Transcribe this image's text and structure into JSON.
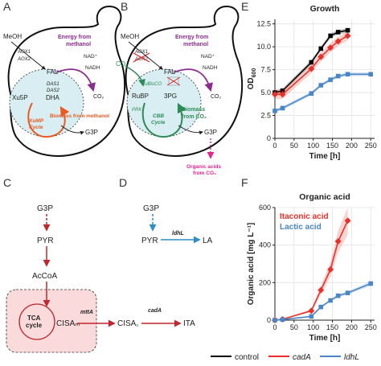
{
  "panels": {
    "A": "A",
    "B": "B",
    "C": "C",
    "D": "D",
    "E": "E",
    "F": "F"
  },
  "panel_a": {
    "meoh": "MeOH",
    "aox1": "AOX1",
    "aox2": "AOX2",
    "fal": "FAL",
    "das1": "DAS1",
    "das2": "DAS2",
    "dha": "DHA",
    "xu5p": "Xu5P",
    "cycle": "XuMP Cycle",
    "energy": "Energy from methanol",
    "nad": "NAD⁺",
    "nadh": "NADH",
    "co2": "CO₂",
    "biomass": "Biomass from methanol",
    "g3p": "G3P"
  },
  "panel_b": {
    "meoh": "MeOH",
    "aox1": "AOX1",
    "aox2": "AOX2",
    "fal": "FAL",
    "co2_in": "CO₂",
    "rubisco": "RuBisCO",
    "prk": "PRK",
    "rubp": "RuBP",
    "pg3": "3PG",
    "cycle": "CBB Cycle",
    "energy": "Energy from methanol",
    "nad": "NAD⁺",
    "nadh": "NADH",
    "co2_out": "CO₂",
    "biomass": "Biomass from CO₂",
    "g3p": "G3P",
    "organic": "Organic acids from CO₂"
  },
  "panel_c": {
    "g3p": "G3P",
    "pyr": "PYR",
    "acoa": "AcCoA",
    "tca": "TCA cycle",
    "cisam": "CISAₘ",
    "mtta": "mttA",
    "cisac": "CISA꜀",
    "cada": "cadA",
    "ita": "ITA"
  },
  "panel_d": {
    "g3p": "G3P",
    "pyr": "PYR",
    "ldhl": "ldhL",
    "la": "LA"
  },
  "colors": {
    "control": "#000000",
    "cadA": "#e8312a",
    "ldhL": "#4a86c5",
    "pathway_red": "#c0272d",
    "pathway_blue": "#2a8fc9",
    "energy_purple": "#8b2c8f",
    "xump_orange": "#ea5a22",
    "cbb_green": "#2e8b57",
    "magenta": "#e4258d"
  },
  "legend": [
    {
      "label": "control",
      "color": "#000000"
    },
    {
      "label": "cadA",
      "color": "#e8312a"
    },
    {
      "label": "ldhL",
      "color": "#4a86c5"
    }
  ],
  "chart_data": [
    {
      "type": "line",
      "title": "Growth",
      "xlabel": "Time [h]",
      "ylabel": "OD600",
      "xlim": [
        0,
        260
      ],
      "ylim": [
        0,
        13
      ],
      "xticks": [
        0,
        50,
        100,
        150,
        200,
        250
      ],
      "yticks": [
        0,
        2.5,
        5,
        7.5,
        10,
        12.5
      ],
      "xticklabels": [
        "0",
        "50",
        "100",
        "150",
        "200",
        "250"
      ],
      "yticklabels": [
        "0",
        "2.5",
        "5.0",
        "7.5",
        "10.0",
        "12.5"
      ],
      "grid": true,
      "series": [
        {
          "name": "control",
          "marker": "square",
          "x": [
            0,
            20,
            95,
            120,
            145,
            165,
            190
          ],
          "y": [
            5.0,
            5.2,
            8.3,
            9.8,
            11.2,
            11.6,
            11.8
          ],
          "band": 0.25
        },
        {
          "name": "cadA",
          "marker": "diamond",
          "x": [
            0,
            20,
            95,
            120,
            145,
            165,
            190
          ],
          "y": [
            4.8,
            4.8,
            7.6,
            8.9,
            9.9,
            10.6,
            11.2
          ],
          "band": 0.5
        },
        {
          "name": "ldhL",
          "marker": "square",
          "x": [
            0,
            20,
            95,
            120,
            145,
            165,
            190,
            250
          ],
          "y": [
            3.0,
            3.3,
            4.9,
            5.8,
            6.4,
            6.8,
            7.0,
            7.0
          ],
          "band": 0.2
        }
      ]
    },
    {
      "type": "line",
      "title": "Organic acid",
      "xlabel": "Time [h]",
      "ylabel": "Organic acid [mg L⁻¹]",
      "xlim": [
        0,
        260
      ],
      "ylim": [
        0,
        600
      ],
      "xticks": [
        0,
        50,
        100,
        150,
        200,
        250
      ],
      "yticks": [
        0,
        200,
        400,
        600
      ],
      "xticklabels": [
        "0",
        "50",
        "100",
        "150",
        "200",
        "250"
      ],
      "yticklabels": [
        "0",
        "200",
        "400",
        "600"
      ],
      "legend": [
        {
          "label": "Itaconic acid",
          "color": "#e8312a"
        },
        {
          "label": "Lactic acid",
          "color": "#4a86c5"
        }
      ],
      "grid": true,
      "series": [
        {
          "name": "Itaconic acid",
          "marker": "diamond",
          "x": [
            0,
            20,
            95,
            120,
            145,
            165,
            190
          ],
          "y": [
            0,
            5,
            50,
            160,
            270,
            420,
            530
          ],
          "band_rel": 0.14
        },
        {
          "name": "Lactic acid",
          "marker": "square",
          "x": [
            0,
            20,
            95,
            120,
            145,
            165,
            190,
            250
          ],
          "y": [
            0,
            3,
            20,
            70,
            105,
            130,
            145,
            195
          ],
          "band_rel": 0.06
        }
      ]
    }
  ]
}
